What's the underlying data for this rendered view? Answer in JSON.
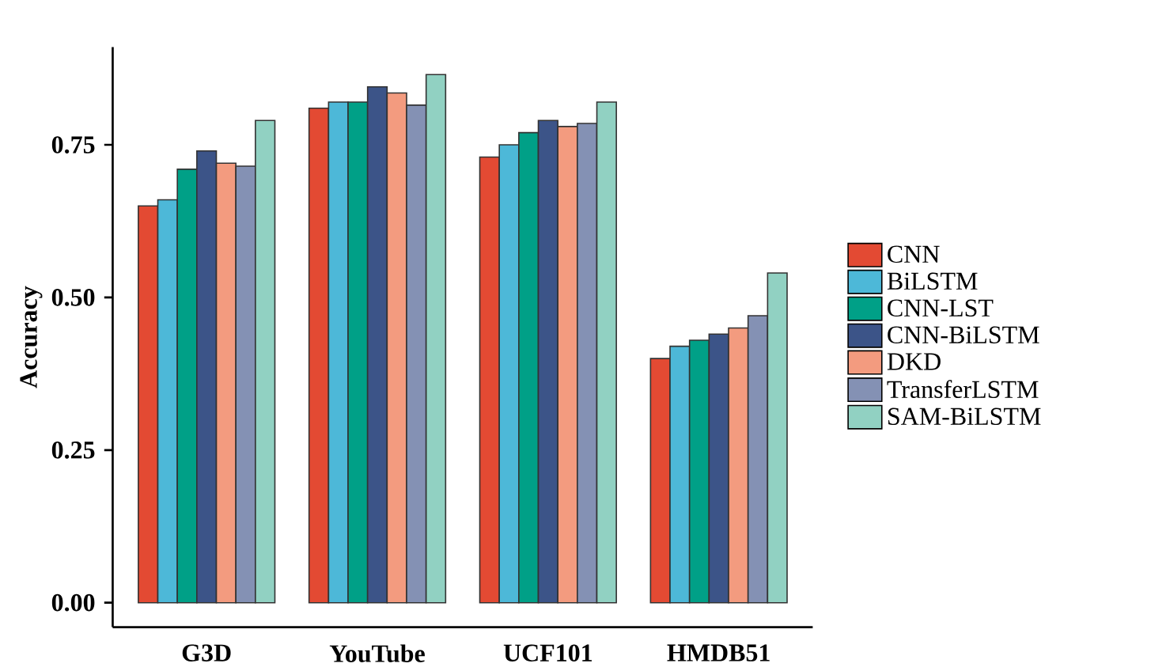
{
  "chart_data": {
    "type": "bar",
    "ylabel": "Accuracy",
    "categories": [
      "G3D",
      "YouTube",
      "UCF101",
      "HMDB51"
    ],
    "series": [
      {
        "name": "CNN",
        "color": "#e34a33",
        "values": [
          0.65,
          0.81,
          0.73,
          0.4
        ]
      },
      {
        "name": "BiLSTM",
        "color": "#4db8d8",
        "values": [
          0.66,
          0.82,
          0.75,
          0.42
        ]
      },
      {
        "name": "CNN-LST",
        "color": "#00a087",
        "values": [
          0.71,
          0.82,
          0.77,
          0.43
        ]
      },
      {
        "name": "CNN-BiLSTM",
        "color": "#3c5488",
        "values": [
          0.74,
          0.845,
          0.79,
          0.44
        ]
      },
      {
        "name": "DKD",
        "color": "#f39b7f",
        "values": [
          0.72,
          0.835,
          0.78,
          0.45
        ]
      },
      {
        "name": "TransferLSTM",
        "color": "#8491b4",
        "values": [
          0.715,
          0.815,
          0.785,
          0.47
        ]
      },
      {
        "name": "SAM-BiLSTM",
        "color": "#91d1c2",
        "values": [
          0.79,
          0.865,
          0.82,
          0.54
        ]
      }
    ],
    "ylim": [
      -0.04,
      0.91
    ],
    "yticks": [
      {
        "value": 0,
        "label": "0.00"
      },
      0.25,
      {
        "value": 0.5,
        "label": "0.50"
      },
      0.75
    ],
    "legend": "right",
    "grid": false
  }
}
